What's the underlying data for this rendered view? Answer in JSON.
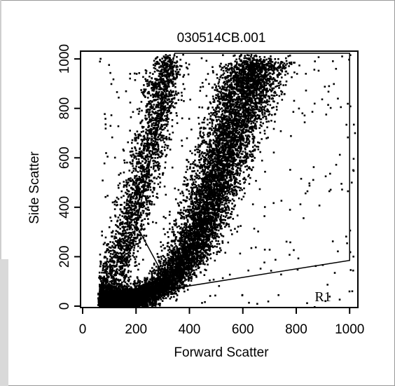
{
  "chart_data": {
    "type": "scatter",
    "title": "030514CB.001",
    "xlabel": "Forward Scatter",
    "ylabel": "Side Scatter",
    "xlim": [
      0,
      1023
    ],
    "ylim": [
      0,
      1023
    ],
    "xticks": [
      0,
      200,
      400,
      600,
      800,
      1000
    ],
    "yticks": [
      0,
      200,
      400,
      600,
      800,
      1000
    ],
    "grid": false,
    "gate": {
      "label": "R1",
      "vertices": [
        [
          345,
          1023
        ],
        [
          1000,
          1023
        ],
        [
          1000,
          185
        ],
        [
          330,
          70
        ],
        [
          200,
          330
        ]
      ]
    },
    "populations": [
      {
        "name": "",
        "description": "dense main band",
        "centerline": [
          [
            60,
            10
          ],
          [
            200,
            40
          ],
          [
            320,
            100
          ],
          [
            420,
            260
          ],
          [
            480,
            450
          ],
          [
            540,
            640
          ],
          [
            600,
            850
          ],
          [
            660,
            1000
          ]
        ]
      },
      {
        "name": "",
        "description": "left sparse band",
        "centerline": [
          [
            100,
            100
          ],
          [
            170,
            300
          ],
          [
            230,
            550
          ],
          [
            280,
            800
          ],
          [
            320,
            1000
          ]
        ]
      }
    ]
  }
}
